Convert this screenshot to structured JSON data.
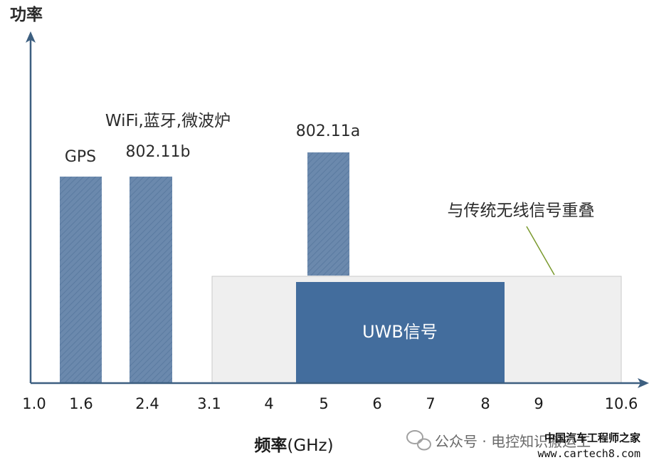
{
  "y_axis_label": "功率",
  "x_axis_label_bold": "频率",
  "x_axis_label_unit": "(GHz)",
  "x_ticks": [
    "1.0",
    "1.6",
    "2.4",
    "3.1",
    "4",
    "5",
    "6",
    "7",
    "8",
    "9",
    "10.6"
  ],
  "bands": [
    {
      "label": "GPS"
    },
    {
      "label_top": "WiFi,蓝牙,微波炉",
      "label": "802.11b"
    },
    {
      "label": "802.11a"
    }
  ],
  "overlap_label": "与传统无线信号重叠",
  "uwb_label": "UWB信号",
  "watermark": {
    "channel": "公众号 · 电控知识搬运工",
    "site_name": "中国汽车工程师之家",
    "url": "www.cartech8.com"
  },
  "colors": {
    "axis": "#3d5f80",
    "band_fill": "#6b89ad",
    "uwb_fill": "#436d9d",
    "overlap_fill": "#efefef",
    "leader": "#7a9a2e"
  }
}
